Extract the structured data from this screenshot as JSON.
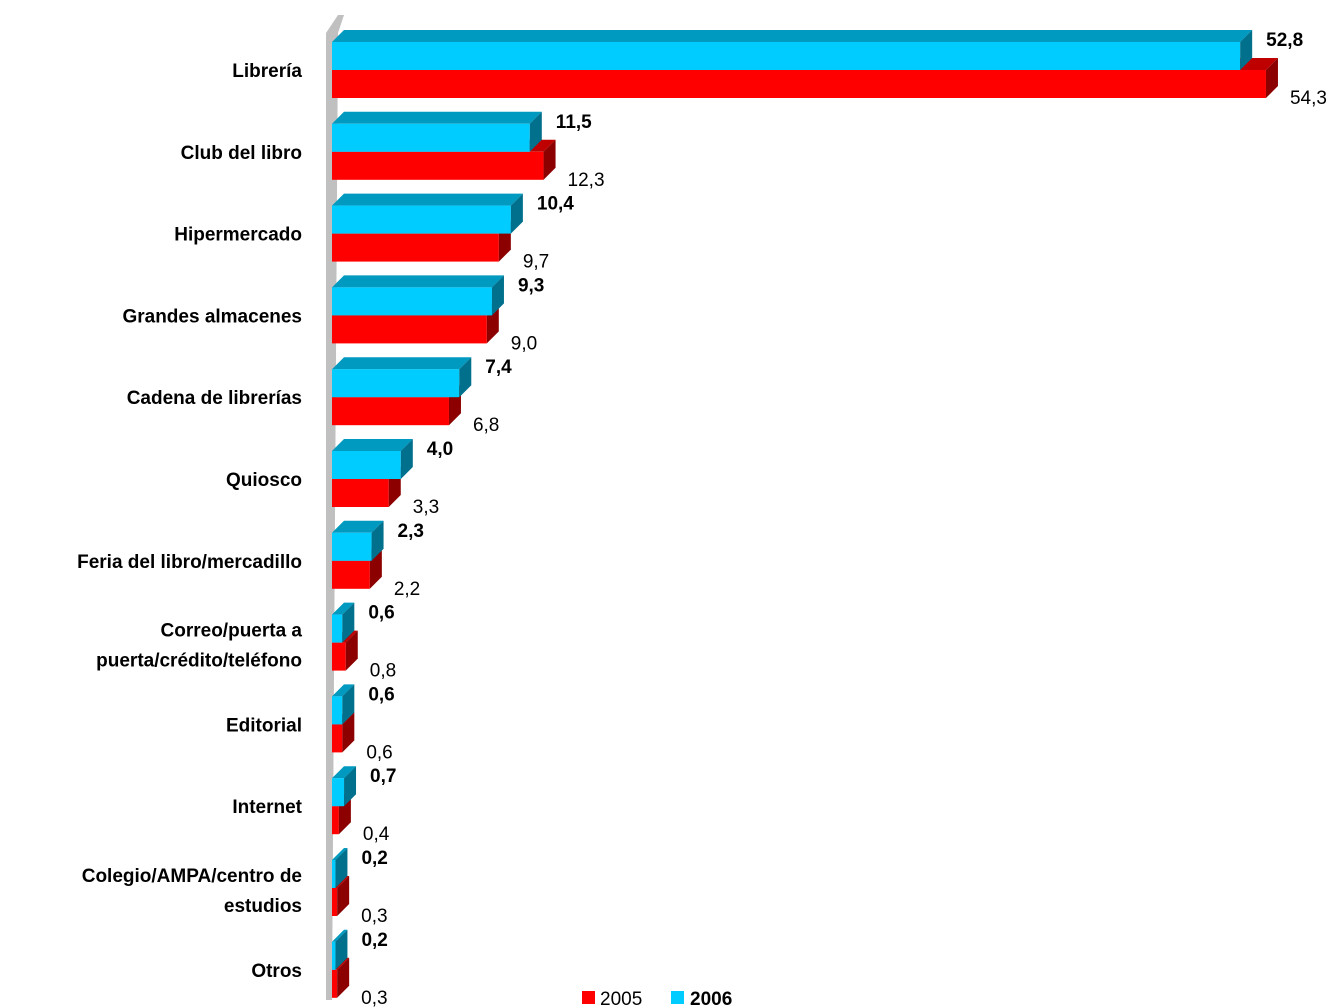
{
  "chart_data": {
    "type": "bar",
    "orientation": "horizontal",
    "three_d": true,
    "categories": [
      [
        "Librería"
      ],
      [
        "Club del libro"
      ],
      [
        "Hipermercado"
      ],
      [
        "Grandes almacenes"
      ],
      [
        "Cadena de librerías"
      ],
      [
        "Quiosco"
      ],
      [
        "Feria del libro/mercadillo"
      ],
      [
        "Correo/puerta a",
        "puerta/crédito/teléfono"
      ],
      [
        "Editorial"
      ],
      [
        "Internet"
      ],
      [
        "Colegio/AMPA/centro de",
        "estudios"
      ],
      [
        "Otros"
      ]
    ],
    "series": [
      {
        "name": "2006",
        "color": "#00ccff",
        "values": [
          52.8,
          11.5,
          10.4,
          9.3,
          7.4,
          4.0,
          2.3,
          0.6,
          0.6,
          0.7,
          0.2,
          0.2
        ],
        "labels": [
          "52,8",
          "11,5",
          "10,4",
          "9,3",
          "7,4",
          "4,0",
          "2,3",
          "0,6",
          "0,6",
          "0,7",
          "0,2",
          "0,2"
        ]
      },
      {
        "name": "2005",
        "color": "#ff0000",
        "values": [
          54.3,
          12.3,
          9.7,
          9.0,
          6.8,
          3.3,
          2.2,
          0.8,
          0.6,
          0.4,
          0.3,
          0.3
        ],
        "labels": [
          "54,3",
          "12,3",
          "9,7",
          "9,0",
          "6,8",
          "3,3",
          "2,2",
          "0,8",
          "0,6",
          "0,4",
          "0,3",
          "0,3"
        ]
      }
    ],
    "xlim": [
      0,
      55
    ],
    "grid": false,
    "legend_position": "bottom"
  }
}
